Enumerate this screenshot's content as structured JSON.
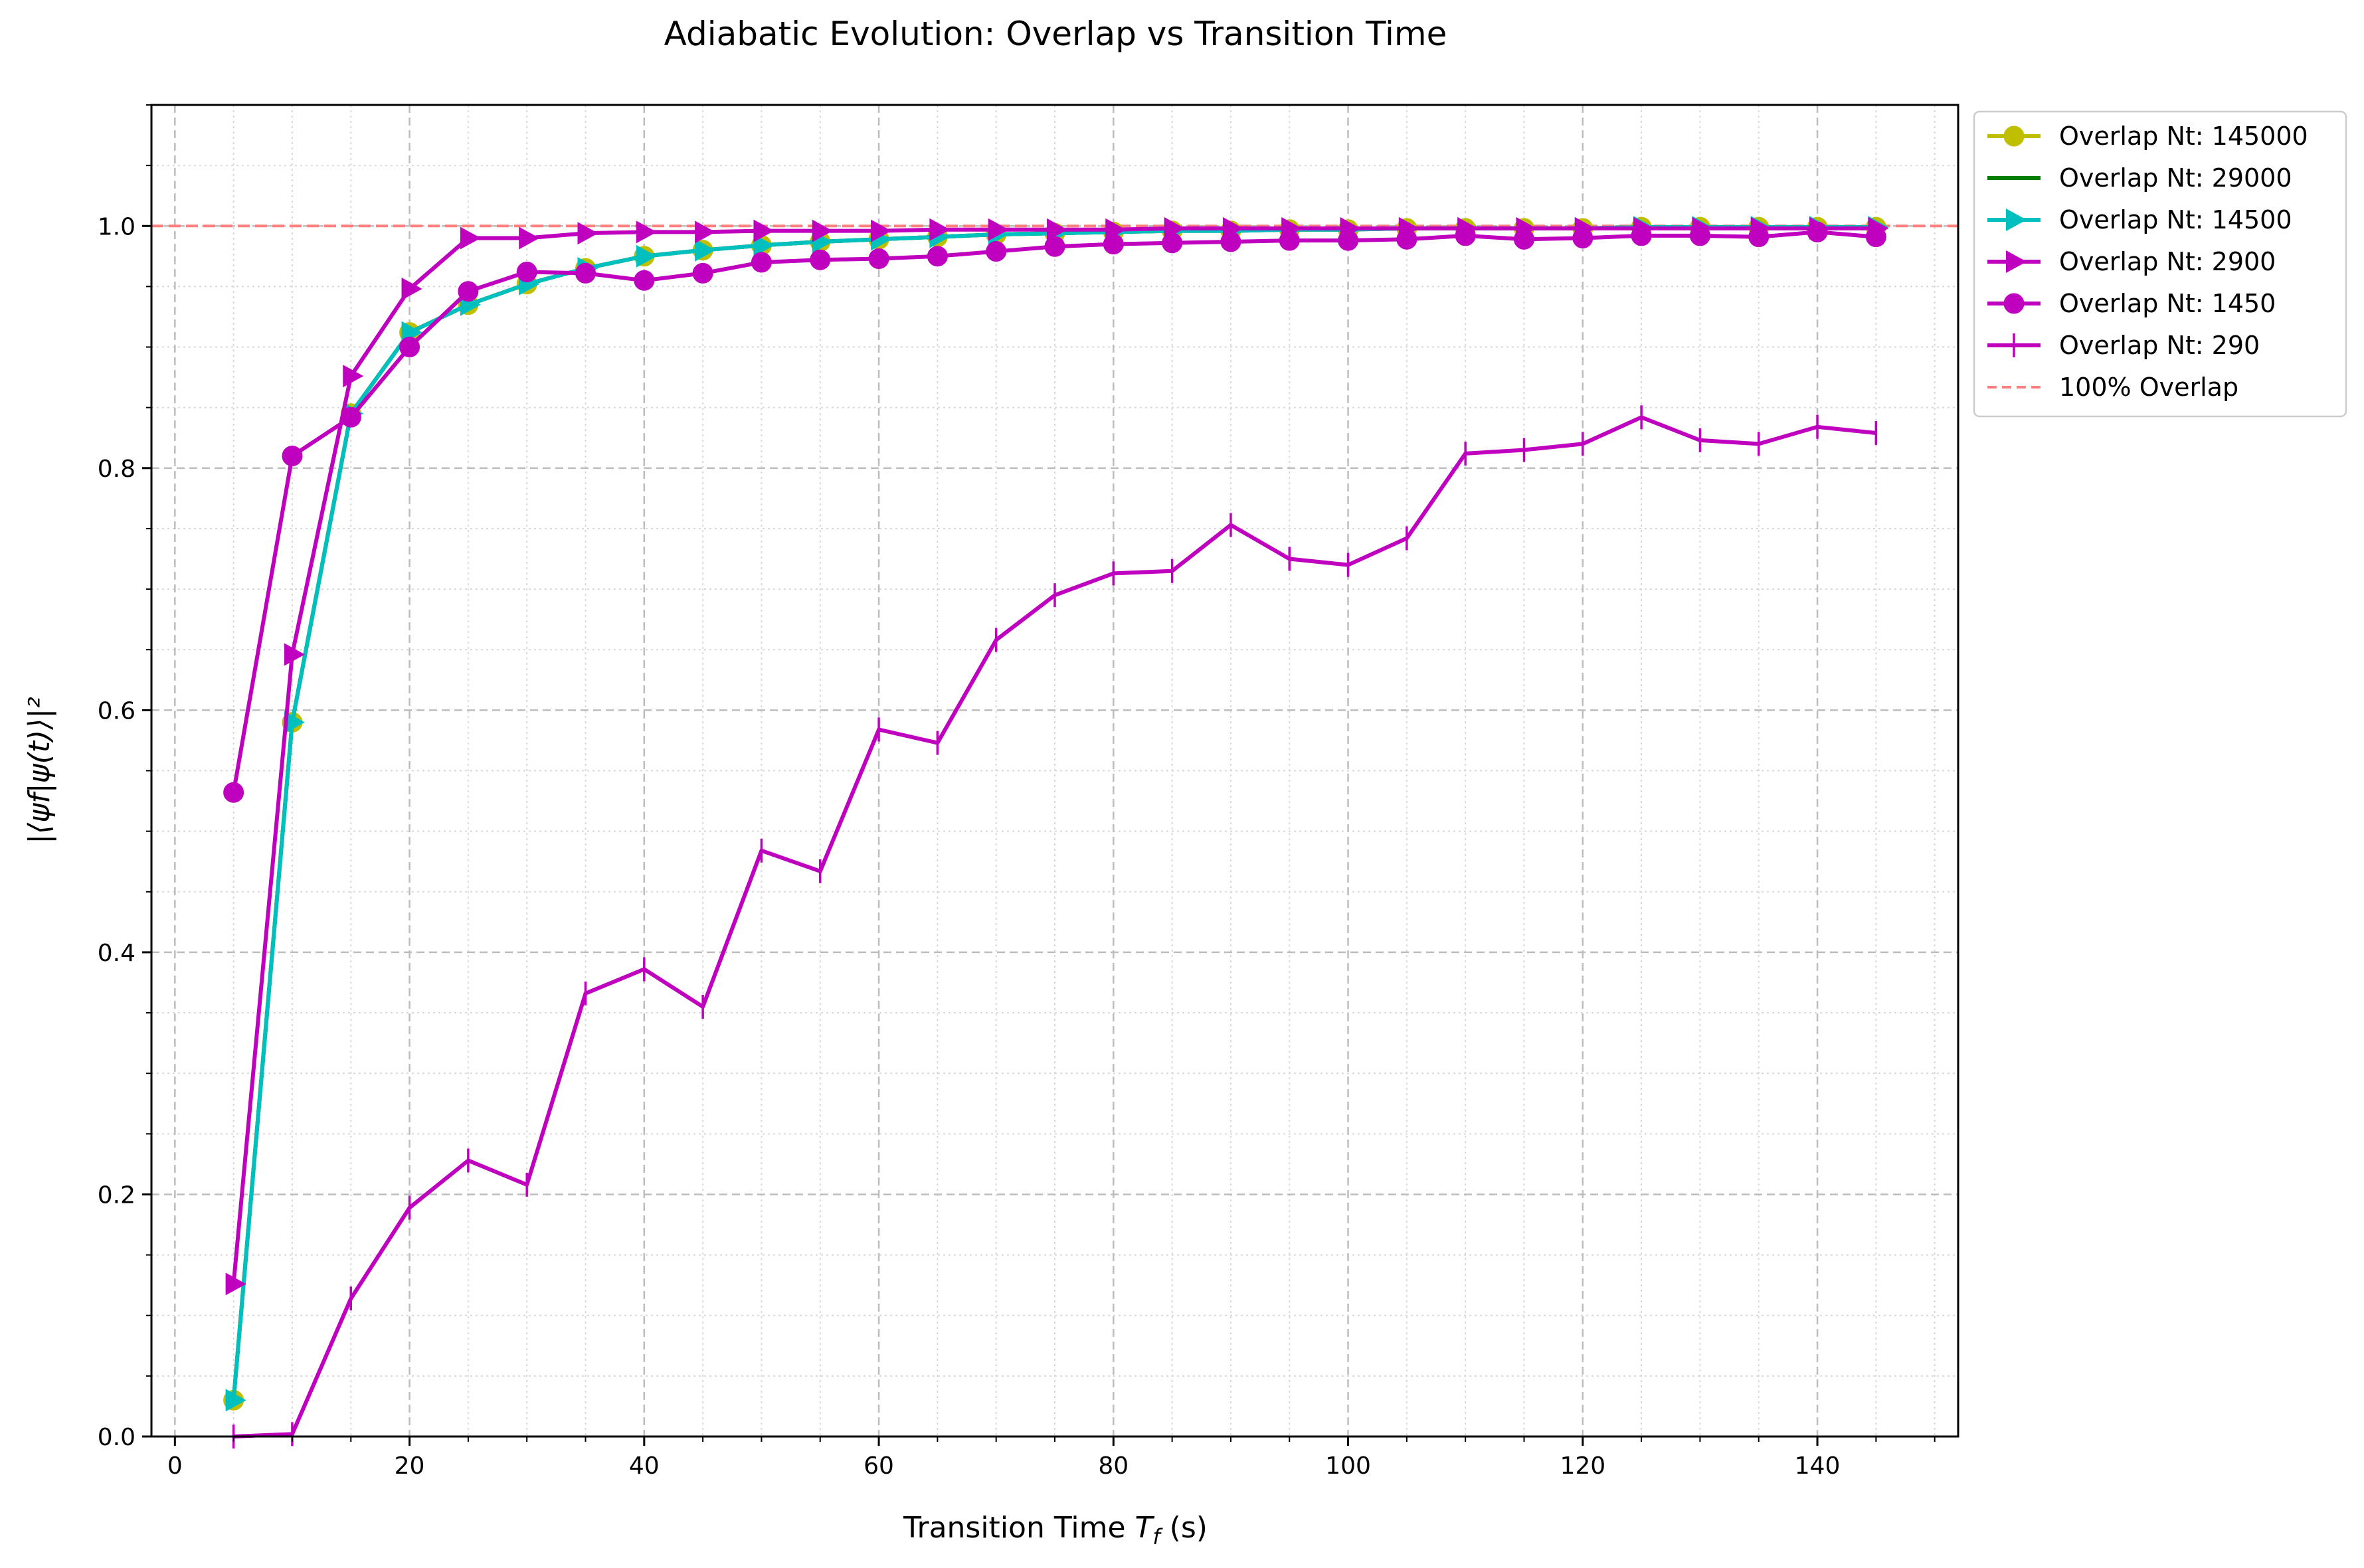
{
  "chart_data": {
    "type": "line",
    "title": "Adiabatic Evolution: Overlap vs Transition Time",
    "xlabel": "Transition Time",
    "xlabel_symbol": "T",
    "xlabel_subscript": "f",
    "xlabel_unit": "(s)",
    "ylabel": "|⟨ψf|ψ(t)⟩|²",
    "xlim": [
      -2,
      152
    ],
    "ylim": [
      0,
      1.1
    ],
    "xticks": [
      0,
      20,
      40,
      60,
      80,
      100,
      120,
      140
    ],
    "yticks": [
      0.0,
      0.2,
      0.4,
      0.6,
      0.8,
      1.0
    ],
    "xtick_labels": [
      "0",
      "20",
      "40",
      "60",
      "80",
      "100",
      "120",
      "140"
    ],
    "ytick_labels": [
      "0.0",
      "0.2",
      "0.4",
      "0.6",
      "0.8",
      "1.0"
    ],
    "grid": "major dashed, minor dotted",
    "legend_position": "outside top-right",
    "x": [
      5,
      10,
      15,
      20,
      25,
      30,
      35,
      40,
      45,
      50,
      55,
      60,
      65,
      70,
      75,
      80,
      85,
      90,
      95,
      100,
      105,
      110,
      115,
      120,
      125,
      130,
      135,
      140,
      145
    ],
    "series": [
      {
        "name": "Overlap Nt: 145000",
        "color": "#bfbf00",
        "marker": "circle",
        "values": [
          0.03,
          0.59,
          0.845,
          0.912,
          0.935,
          0.952,
          0.965,
          0.975,
          0.98,
          0.984,
          0.987,
          0.989,
          0.991,
          0.993,
          0.994,
          0.995,
          0.996,
          0.996,
          0.997,
          0.997,
          0.998,
          0.998,
          0.998,
          0.998,
          0.999,
          0.999,
          0.999,
          0.999,
          0.999
        ]
      },
      {
        "name": "Overlap Nt: 29000",
        "color": "#008000",
        "marker": "none",
        "values": [
          0.03,
          0.59,
          0.845,
          0.912,
          0.935,
          0.952,
          0.965,
          0.975,
          0.98,
          0.984,
          0.987,
          0.989,
          0.991,
          0.993,
          0.994,
          0.995,
          0.996,
          0.996,
          0.997,
          0.997,
          0.998,
          0.998,
          0.998,
          0.998,
          0.999,
          0.999,
          0.999,
          0.999,
          0.999
        ]
      },
      {
        "name": "Overlap Nt: 14500",
        "color": "#00bfbf",
        "marker": "triangle-right",
        "values": [
          0.03,
          0.59,
          0.845,
          0.912,
          0.935,
          0.952,
          0.965,
          0.975,
          0.98,
          0.984,
          0.987,
          0.989,
          0.991,
          0.993,
          0.994,
          0.995,
          0.996,
          0.996,
          0.997,
          0.997,
          0.998,
          0.998,
          0.998,
          0.998,
          0.999,
          0.999,
          0.999,
          0.999,
          0.999
        ]
      },
      {
        "name": "Overlap Nt: 2900",
        "color": "#bf00bf",
        "marker": "triangle-right",
        "values": [
          0.126,
          0.646,
          0.876,
          0.948,
          0.99,
          0.99,
          0.994,
          0.995,
          0.995,
          0.996,
          0.996,
          0.996,
          0.997,
          0.997,
          0.997,
          0.997,
          0.998,
          0.998,
          0.998,
          0.998,
          0.998,
          0.998,
          0.998,
          0.998,
          0.998,
          0.998,
          0.998,
          0.998,
          0.998
        ]
      },
      {
        "name": "Overlap Nt: 1450",
        "color": "#bf00bf",
        "marker": "circle",
        "values": [
          0.532,
          0.81,
          0.842,
          0.9,
          0.946,
          0.962,
          0.961,
          0.955,
          0.961,
          0.97,
          0.972,
          0.973,
          0.975,
          0.979,
          0.983,
          0.985,
          0.986,
          0.987,
          0.988,
          0.988,
          0.989,
          0.992,
          0.989,
          0.99,
          0.992,
          0.992,
          0.991,
          0.995,
          0.991
        ]
      },
      {
        "name": "Overlap Nt: 290",
        "color": "#bf00bf",
        "marker": "vline",
        "values": [
          0.0,
          0.002,
          0.114,
          0.189,
          0.228,
          0.208,
          0.366,
          0.386,
          0.355,
          0.484,
          0.467,
          0.584,
          0.573,
          0.658,
          0.695,
          0.713,
          0.715,
          0.753,
          0.725,
          0.72,
          0.742,
          0.812,
          0.815,
          0.82,
          0.842,
          0.823,
          0.82,
          0.834,
          0.829
        ]
      }
    ],
    "reference_line": {
      "name": "100% Overlap",
      "value": 1.0,
      "color": "#ff7f7f",
      "style": "dashed"
    }
  }
}
